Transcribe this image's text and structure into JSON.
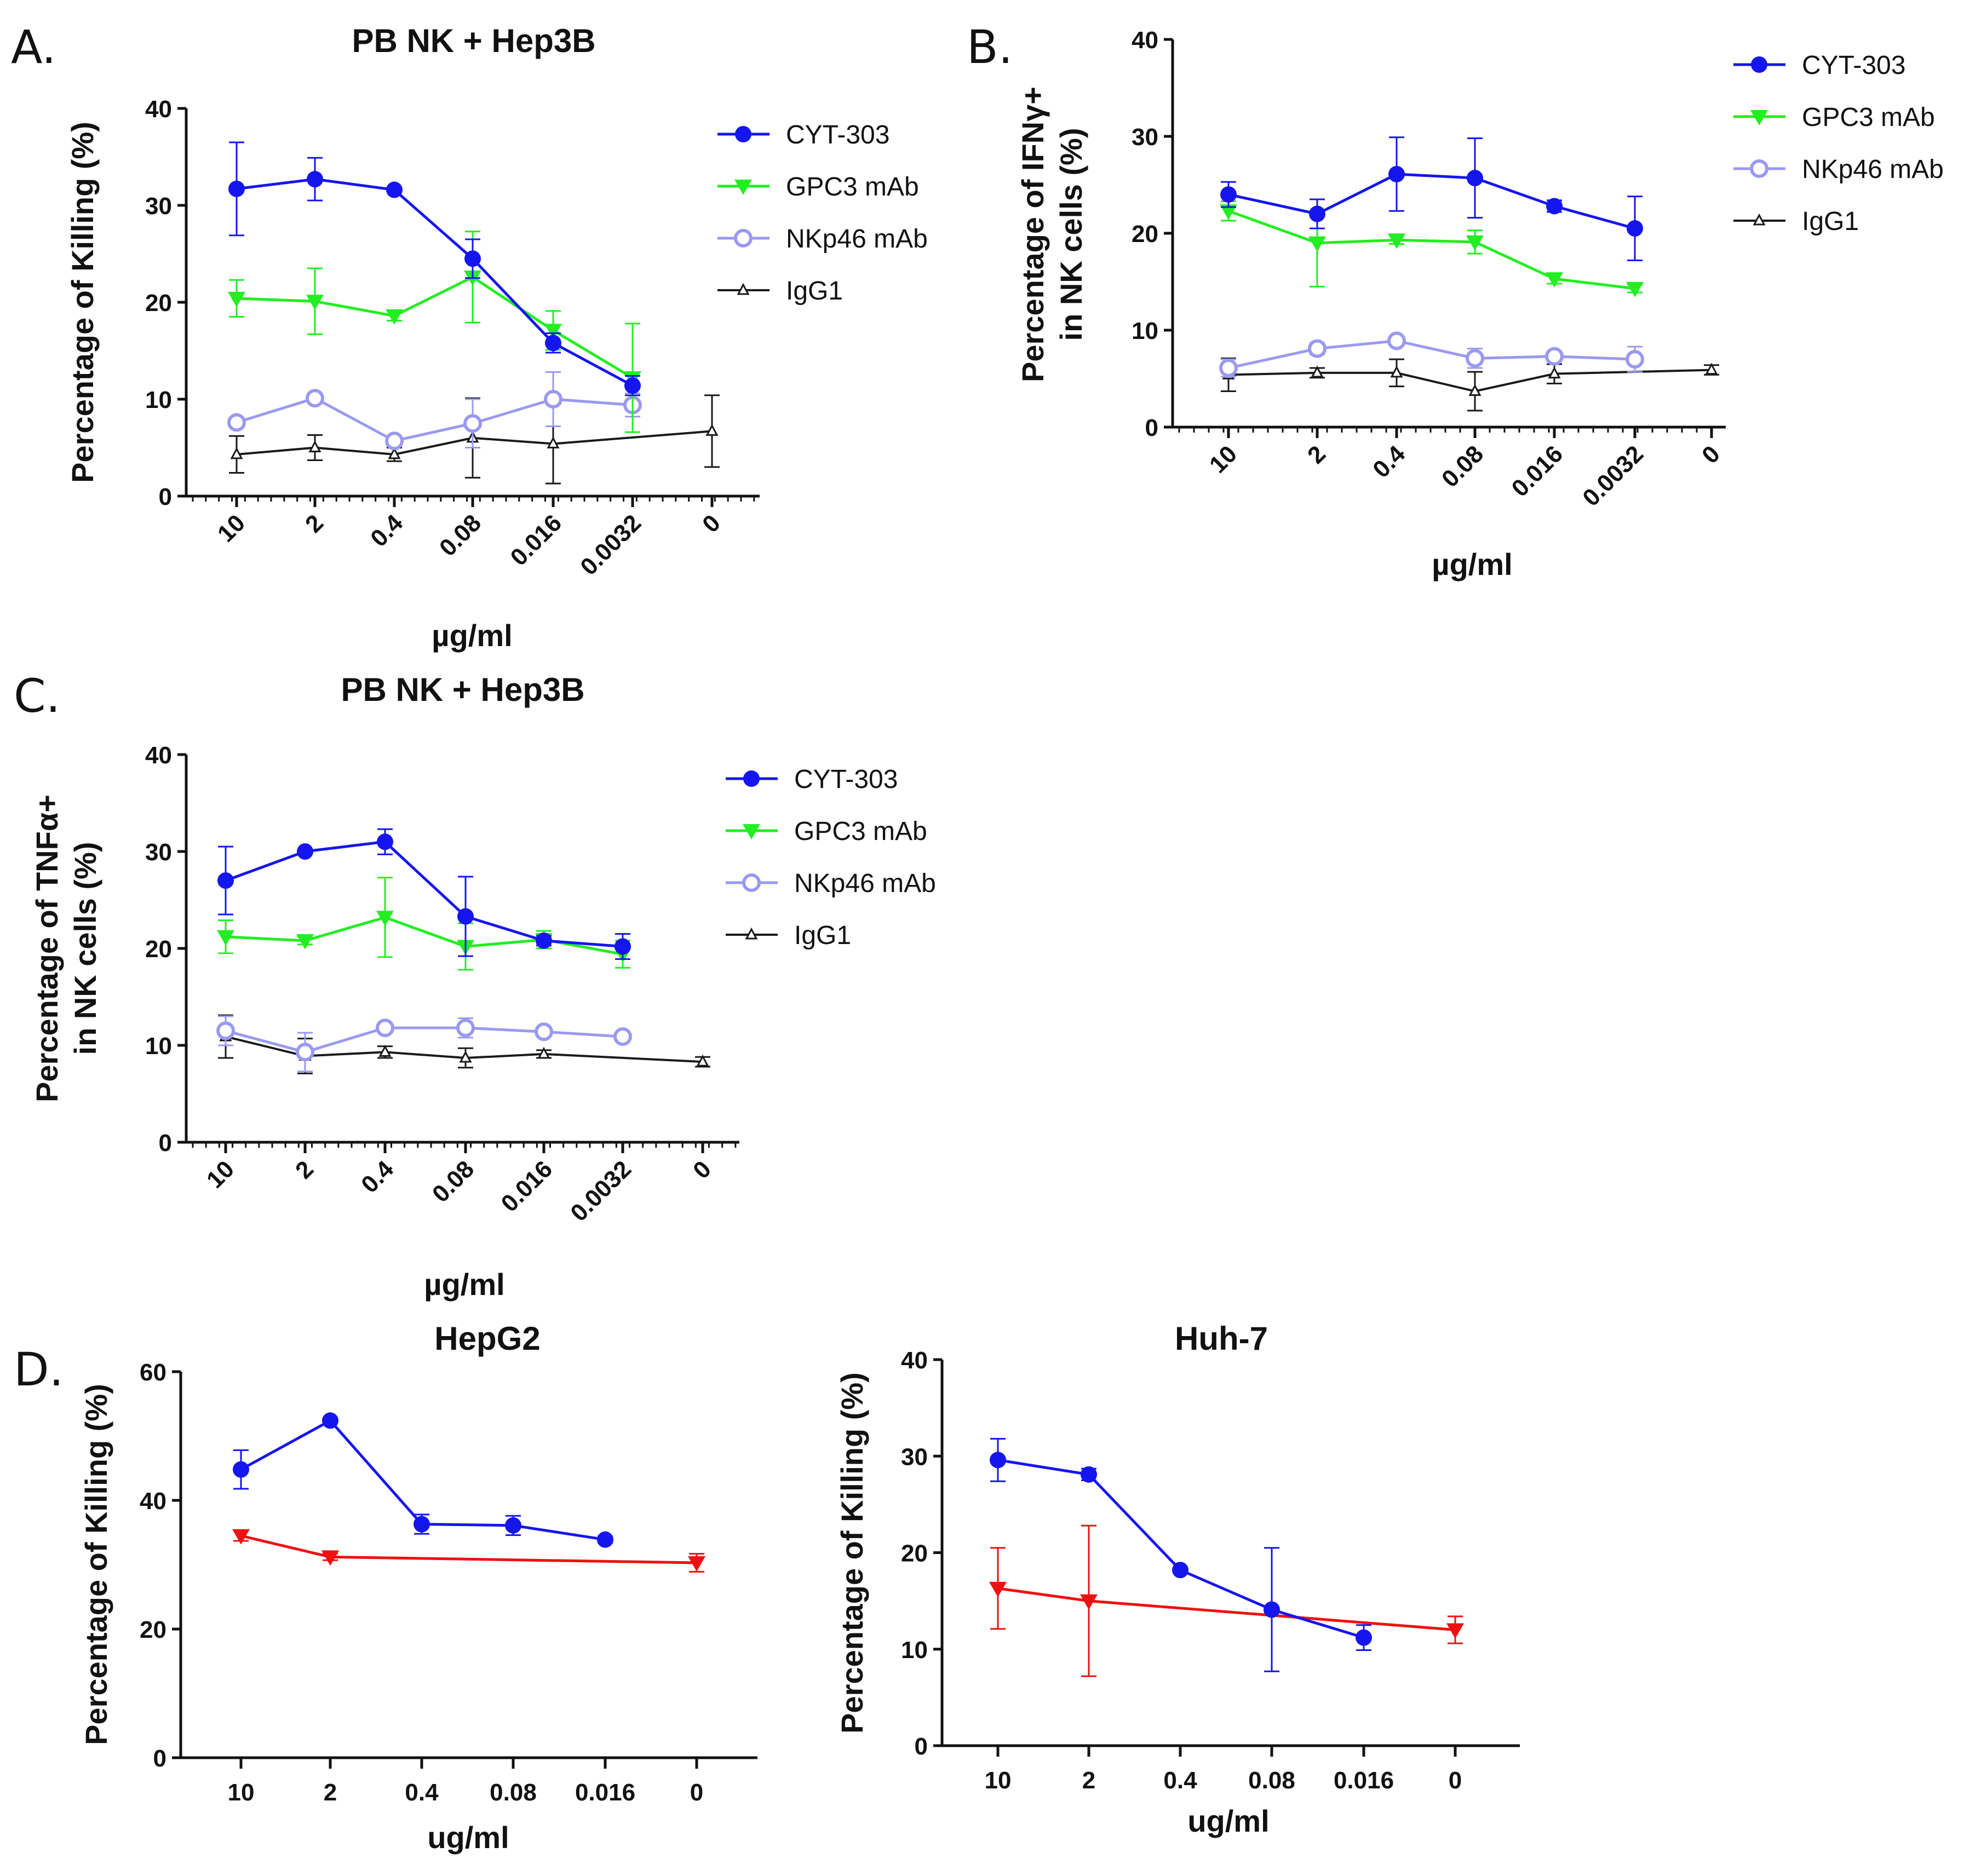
{
  "panels": {
    "A": "A.",
    "B": "B.",
    "C": "C.",
    "D": "D."
  },
  "colors": {
    "CYT-303": "#1515ee",
    "GPC3 mAb": "#22ee22",
    "NKp46 mAb": "#9a9af0",
    "IgG1": "#1a1a1a",
    "red": "#ee1111"
  },
  "chart_data": [
    {
      "panel": "A.",
      "type": "line",
      "title": "PB NK + Hep3B",
      "xlabel": "µg/ml",
      "ylabel": "Percentage of Killing (%)",
      "ylim": [
        0,
        40
      ],
      "yticks": [
        0,
        10,
        20,
        30,
        40
      ],
      "categories": [
        "10",
        "2",
        "0.4",
        "0.08",
        "0.016",
        "0.0032",
        "0"
      ],
      "legend": "top-right",
      "series": [
        {
          "name": "CYT-303",
          "marker": "circle",
          "values": [
            31.7,
            32.7,
            31.6,
            24.5,
            15.8,
            11.4,
            null
          ],
          "errors": [
            4.8,
            2.2,
            0,
            2.0,
            1.0,
            1.0,
            null
          ]
        },
        {
          "name": "GPC3 mAb",
          "marker": "triangle-down",
          "values": [
            20.4,
            20.1,
            18.6,
            22.6,
            17.1,
            12.2,
            null
          ],
          "errors": [
            1.9,
            3.4,
            0.5,
            4.7,
            2.0,
            5.6,
            null
          ]
        },
        {
          "name": "NKp46 mAb",
          "marker": "circle-open",
          "values": [
            7.6,
            10.1,
            5.7,
            7.5,
            10.0,
            9.4,
            null
          ],
          "errors": [
            0.5,
            0.5,
            0.5,
            2.5,
            2.8,
            1.2,
            null
          ]
        },
        {
          "name": "IgG1",
          "marker": "triangle-open",
          "values": [
            4.3,
            5.0,
            4.3,
            6.0,
            5.4,
            null,
            6.7
          ],
          "errors": [
            1.9,
            1.3,
            0.7,
            4.1,
            4.1,
            null,
            3.7
          ]
        }
      ]
    },
    {
      "panel": "B.",
      "type": "line",
      "title": "",
      "xlabel": "µg/ml",
      "ylabel": "Percentage of IFNγ+ in NK cells (%)",
      "ylabel_lines": [
        "Percentage of IFNγ+",
        "in NK cells (%)"
      ],
      "ylim": [
        0,
        40
      ],
      "yticks": [
        0,
        10,
        20,
        30,
        40
      ],
      "categories": [
        "10",
        "2",
        "0.4",
        "0.08",
        "0.016",
        "0.0032",
        "0"
      ],
      "legend": "top-right",
      "series": [
        {
          "name": "CYT-303",
          "marker": "circle",
          "values": [
            24.0,
            22.0,
            26.1,
            25.7,
            22.8,
            20.5,
            null
          ],
          "errors": [
            1.3,
            1.5,
            3.8,
            4.1,
            0.6,
            3.3,
            null
          ]
        },
        {
          "name": "GPC3 mAb",
          "marker": "triangle-down",
          "values": [
            22.3,
            19.0,
            19.3,
            19.1,
            15.3,
            14.3,
            null
          ],
          "errors": [
            1.0,
            4.5,
            0.4,
            1.2,
            0.5,
            0.4,
            null
          ]
        },
        {
          "name": "NKp46 mAb",
          "marker": "circle-open",
          "values": [
            6.1,
            8.1,
            8.9,
            7.1,
            7.3,
            7.0,
            null
          ],
          "errors": [
            0.9,
            0.6,
            0.4,
            1.0,
            0.5,
            1.3,
            null
          ]
        },
        {
          "name": "IgG1",
          "marker": "triangle-open",
          "values": [
            5.4,
            5.6,
            5.6,
            3.7,
            5.5,
            null,
            5.9
          ],
          "errors": [
            1.7,
            0.5,
            1.4,
            2.0,
            1.0,
            null,
            0.5
          ]
        }
      ]
    },
    {
      "panel": "C.",
      "type": "line",
      "title": "PB NK + Hep3B",
      "xlabel": "µg/ml",
      "ylabel": "Percentage of TNFα+ in NK cells (%)",
      "ylabel_lines": [
        "Percentage of TNFα+",
        "in NK cells (%)"
      ],
      "ylim": [
        0,
        40
      ],
      "yticks": [
        0,
        10,
        20,
        30,
        40
      ],
      "categories": [
        "10",
        "2",
        "0.4",
        "0.08",
        "0.016",
        "0.0032",
        "0"
      ],
      "legend": "top-right",
      "series": [
        {
          "name": "CYT-303",
          "marker": "circle",
          "values": [
            27.0,
            30.0,
            31.0,
            23.3,
            20.8,
            20.2,
            null
          ],
          "errors": [
            3.5,
            0,
            1.3,
            4.1,
            0.5,
            1.3,
            null
          ]
        },
        {
          "name": "GPC3 mAb",
          "marker": "triangle-down",
          "values": [
            21.2,
            20.8,
            23.2,
            20.2,
            20.9,
            19.4,
            null
          ],
          "errors": [
            1.7,
            0.4,
            4.1,
            2.4,
            0.9,
            1.4,
            null
          ]
        },
        {
          "name": "NKp46 mAb",
          "marker": "circle-open",
          "values": [
            11.5,
            9.3,
            11.8,
            11.8,
            11.4,
            10.9,
            null
          ],
          "errors": [
            1.5,
            2.0,
            0.5,
            1.0,
            0.4,
            0.4,
            null
          ]
        },
        {
          "name": "IgG1",
          "marker": "triangle-open",
          "values": [
            10.9,
            8.9,
            9.3,
            8.7,
            9.1,
            null,
            8.3
          ],
          "errors": [
            2.2,
            1.8,
            0.6,
            1.0,
            0.4,
            null,
            0.5
          ]
        }
      ]
    },
    {
      "panel": "D.",
      "type": "line",
      "title": "HepG2",
      "xlabel": "ug/ml",
      "ylabel": "Percentage of Killing (%)",
      "ylim": [
        0,
        60
      ],
      "yticks": [
        0,
        20,
        40,
        60
      ],
      "categories": [
        "10",
        "2",
        "0.4",
        "0.08",
        "0.016",
        "0"
      ],
      "series": [
        {
          "name": "blue series",
          "color_key": "CYT-303",
          "marker": "circle",
          "values": [
            44.8,
            52.4,
            36.3,
            36.1,
            33.9,
            null
          ],
          "errors": [
            3.0,
            0,
            1.5,
            1.5,
            0.5,
            null
          ]
        },
        {
          "name": "red series",
          "color_key": "red",
          "marker": "triangle-down",
          "values": [
            34.5,
            31.2,
            null,
            null,
            null,
            30.3
          ],
          "errors": [
            0.8,
            0.5,
            null,
            null,
            null,
            1.4
          ]
        }
      ]
    },
    {
      "panel": "",
      "type": "line",
      "title": "Huh-7",
      "xlabel": "ug/ml",
      "ylabel": "Percentage of Killing (%)",
      "ylim": [
        0,
        40
      ],
      "yticks": [
        0,
        10,
        20,
        30,
        40
      ],
      "categories": [
        "10",
        "2",
        "0.4",
        "0.08",
        "0.016",
        "0"
      ],
      "series": [
        {
          "name": "blue series",
          "color_key": "CYT-303",
          "marker": "circle",
          "values": [
            29.6,
            28.1,
            18.2,
            14.1,
            11.2,
            null
          ],
          "errors": [
            2.2,
            0.6,
            0,
            6.4,
            1.3,
            null
          ]
        },
        {
          "name": "red series",
          "color_key": "red",
          "marker": "triangle-down",
          "values": [
            16.3,
            15.0,
            null,
            null,
            null,
            12.0
          ],
          "errors": [
            4.2,
            7.8,
            null,
            null,
            null,
            1.4
          ]
        }
      ]
    }
  ]
}
